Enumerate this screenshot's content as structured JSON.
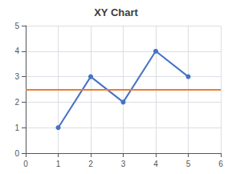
{
  "chart_data": {
    "type": "line",
    "title": "XY Chart",
    "x": [
      1,
      2,
      3,
      4,
      5
    ],
    "series": [
      {
        "values": [
          1,
          3,
          2,
          4,
          3
        ],
        "color": "#4472C4",
        "marker": "circle"
      }
    ],
    "hline": {
      "value": 2.5,
      "color": "#ED7D31"
    },
    "xlim": [
      0,
      6
    ],
    "xticks": [
      0,
      1,
      2,
      3,
      4,
      5,
      6
    ],
    "ylim": [
      0,
      5
    ],
    "yticks": [
      0,
      1,
      2,
      3,
      4,
      5
    ],
    "grid": true
  }
}
